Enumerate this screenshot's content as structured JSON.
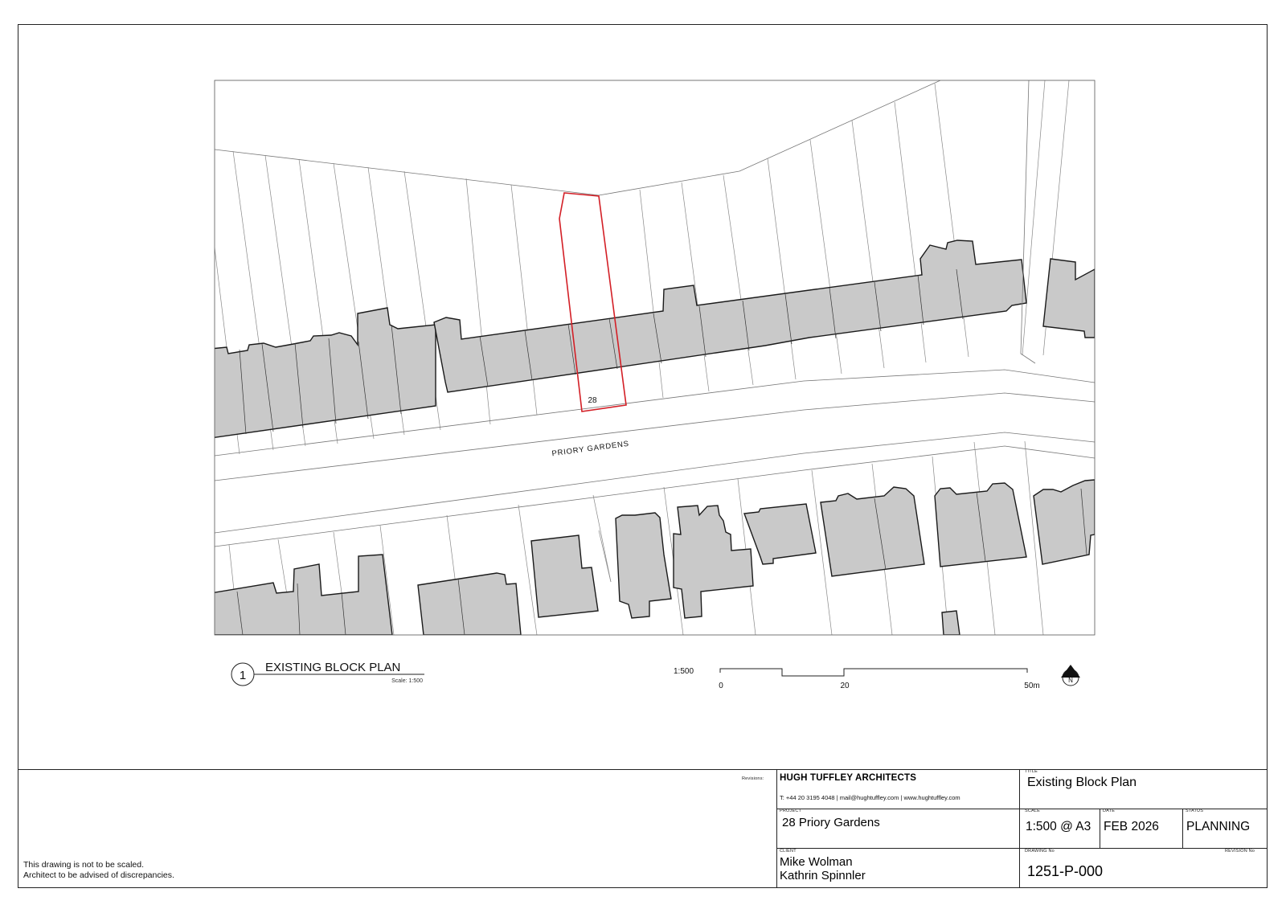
{
  "drawing": {
    "plot_label": "28",
    "street_label": "PRIORY GARDENS",
    "north_label": "N",
    "colors": {
      "building_fill": "#c9c9c9",
      "outline": "#1a1a1a",
      "boundary": "#888888",
      "site_boundary": "#d31f26"
    }
  },
  "view_title": {
    "number": "1",
    "title": "EXISTING BLOCK PLAN",
    "scale": "Scale: 1:500"
  },
  "scale_bar": {
    "ratio": "1:500",
    "label_0": "0",
    "label_20": "20",
    "label_50": "50m"
  },
  "title_block": {
    "revisions_label": "Revisions:",
    "firm": "HUGH TUFFLEY ARCHITECTS",
    "contact": "T: +44 20 3195 4048  |  mail@hughtuffley.com  |  www.hughtuffley.com",
    "project_label": "PROJECT",
    "project": "28 Priory Gardens",
    "client_label": "CLIENT",
    "client_1": "Mike Wolman",
    "client_2": "Kathrin Spinnler",
    "title_label": "TITLE",
    "title": "Existing Block Plan",
    "scale_label": "SCALE",
    "scale": "1:500 @ A3",
    "date_label": "DATE",
    "date": "FEB 2026",
    "status_label": "STATUS",
    "status": "PLANNING",
    "drawing_no_label": "DRAWING No",
    "revision_no_label": "REVISION No",
    "drawing_no": "1251-P-000"
  },
  "disclaimer": {
    "line1": "This drawing is not to be scaled.",
    "line2": "Architect to be advised of discrepancies."
  }
}
